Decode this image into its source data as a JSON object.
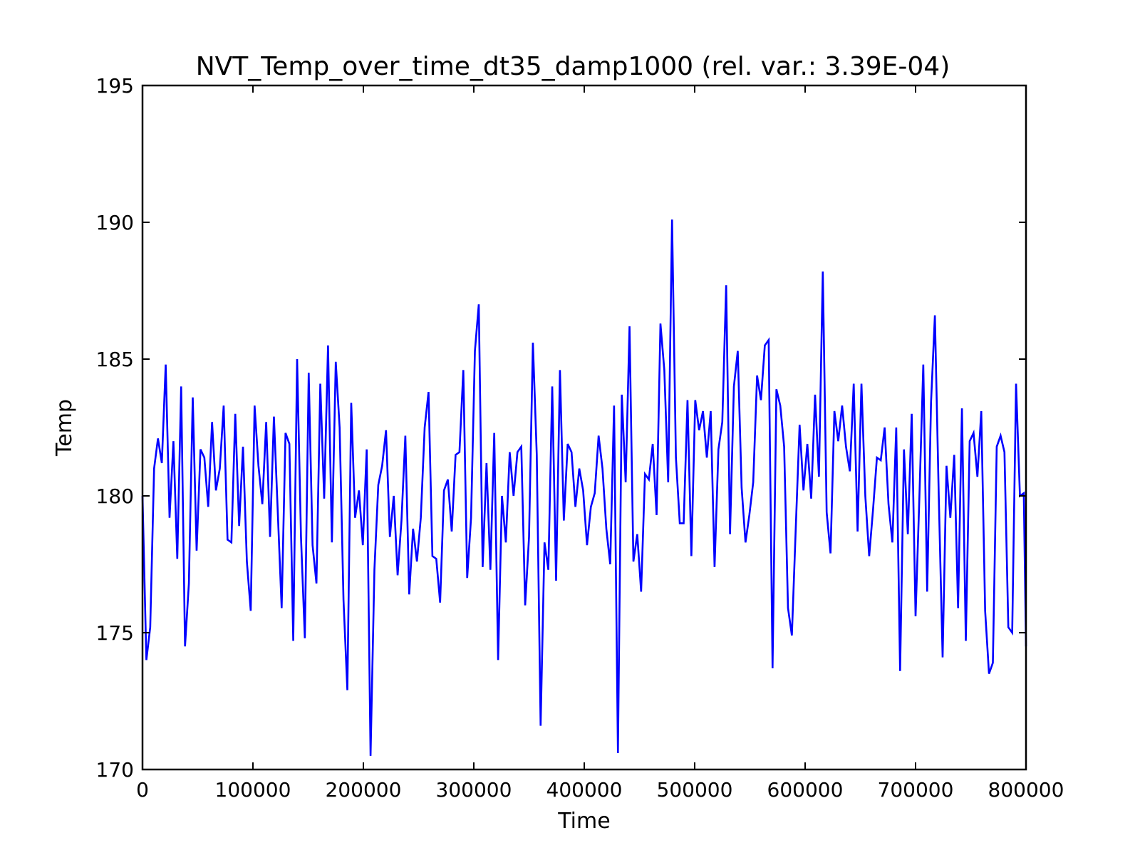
{
  "chart_data": {
    "type": "line",
    "title": "NVT_Temp_over_time_dt35_damp1000 (rel. var.: 3.39E-04)",
    "xlabel": "Time",
    "ylabel": "Temp",
    "xlim": [
      0,
      800000
    ],
    "ylim": [
      170,
      195
    ],
    "xticks": [
      0,
      100000,
      200000,
      300000,
      400000,
      500000,
      600000,
      700000,
      800000
    ],
    "yticks": [
      170,
      175,
      180,
      185,
      190,
      195
    ],
    "grid": false,
    "legend": "none",
    "series": [
      {
        "color": "#0000ff",
        "x_step": 3500,
        "values": [
          180.0,
          174.0,
          175.2,
          181.0,
          182.1,
          181.2,
          184.8,
          179.2,
          182.0,
          177.7,
          184.0,
          174.5,
          176.8,
          183.6,
          178.0,
          181.7,
          181.4,
          179.6,
          182.7,
          180.2,
          181.0,
          183.3,
          178.4,
          178.3,
          183.0,
          178.9,
          181.8,
          177.6,
          175.8,
          183.3,
          181.1,
          179.7,
          182.7,
          178.5,
          182.9,
          179.4,
          175.9,
          182.3,
          181.9,
          174.7,
          185.0,
          178.5,
          174.8,
          184.5,
          178.2,
          176.8,
          184.1,
          179.9,
          185.5,
          178.3,
          184.9,
          182.5,
          176.2,
          172.9,
          183.4,
          179.2,
          180.2,
          178.2,
          181.7,
          170.5,
          177.3,
          180.4,
          181.1,
          182.4,
          178.5,
          180.0,
          177.1,
          179.1,
          182.2,
          176.4,
          178.8,
          177.6,
          179.2,
          182.5,
          183.8,
          177.8,
          177.7,
          176.1,
          180.2,
          180.6,
          178.7,
          181.5,
          181.6,
          184.6,
          177.0,
          179.2,
          185.3,
          187.0,
          177.4,
          181.2,
          177.3,
          182.3,
          174.0,
          180.0,
          178.3,
          181.6,
          180.0,
          181.6,
          181.8,
          176.0,
          178.5,
          185.6,
          181.5,
          171.6,
          178.3,
          177.3,
          184.0,
          176.9,
          184.6,
          179.1,
          181.9,
          181.6,
          179.6,
          181.0,
          180.2,
          178.2,
          179.6,
          180.1,
          182.2,
          181.0,
          178.8,
          177.5,
          183.3,
          170.6,
          183.7,
          180.5,
          186.2,
          177.6,
          178.6,
          176.5,
          180.8,
          180.6,
          181.9,
          179.3,
          186.3,
          184.6,
          180.5,
          190.1,
          181.4,
          179.0,
          179.0,
          183.5,
          177.8,
          183.5,
          182.4,
          183.1,
          181.4,
          183.1,
          177.4,
          181.7,
          182.7,
          187.7,
          178.6,
          184.0,
          185.3,
          180.3,
          178.3,
          179.3,
          180.5,
          184.4,
          183.5,
          185.5,
          185.7,
          173.7,
          183.9,
          183.3,
          181.8,
          175.9,
          174.9,
          178.8,
          182.6,
          180.2,
          181.9,
          179.9,
          183.7,
          180.7,
          188.2,
          179.4,
          177.9,
          183.1,
          182.0,
          183.3,
          181.8,
          180.9,
          184.1,
          178.7,
          184.1,
          180.0,
          177.8,
          179.5,
          181.4,
          181.3,
          182.5,
          179.7,
          178.3,
          182.5,
          173.6,
          181.7,
          178.6,
          183.0,
          175.6,
          180.0,
          184.8,
          176.5,
          183.4,
          186.6,
          180.0,
          174.1,
          181.1,
          179.2,
          181.5,
          175.9,
          183.2,
          174.7,
          182.0,
          182.3,
          180.7,
          183.1,
          175.8,
          173.5,
          173.9,
          181.8,
          182.2,
          181.6,
          175.2,
          175.0,
          184.1,
          180.0,
          180.1,
          174.5
        ]
      }
    ]
  }
}
